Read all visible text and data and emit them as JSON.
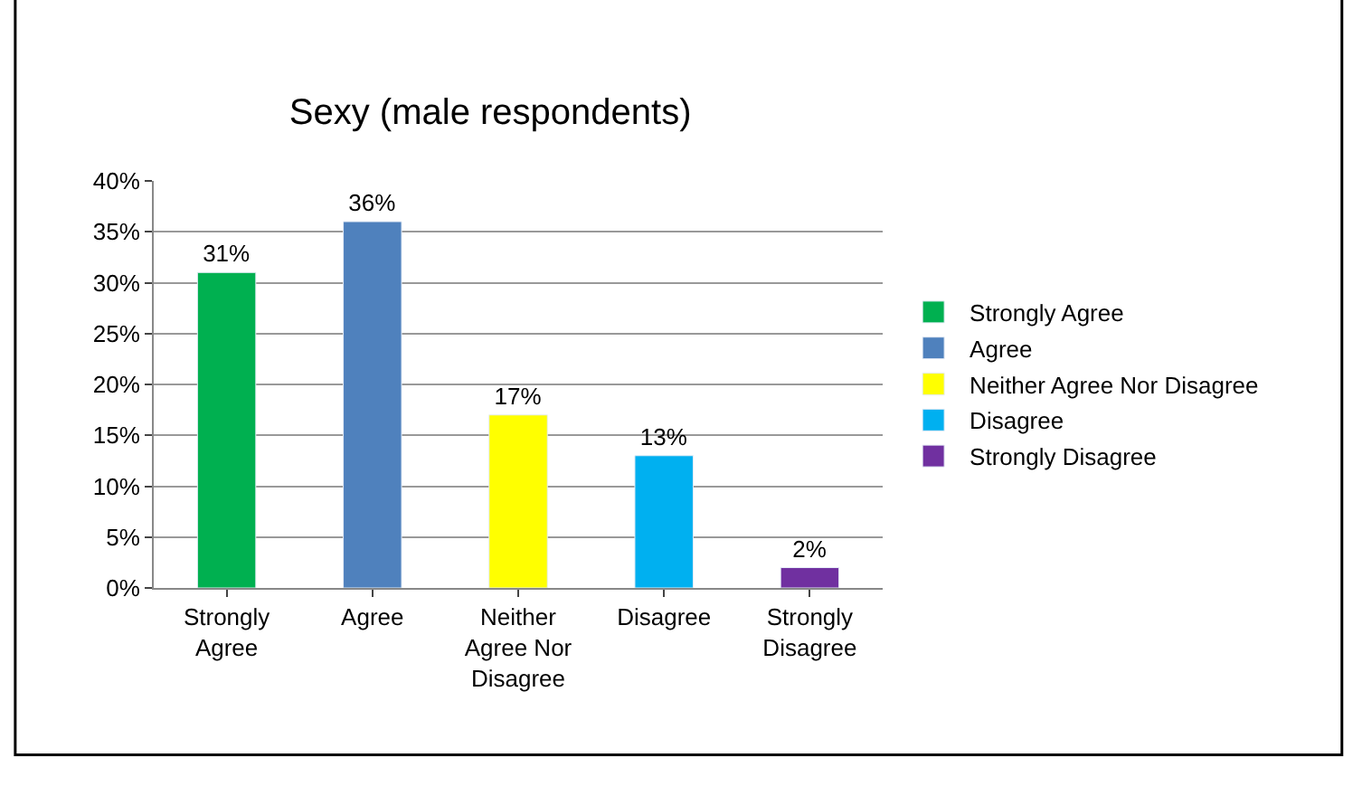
{
  "chart_data": {
    "type": "bar",
    "title": "Sexy (male respondents)",
    "categories": [
      "Strongly Agree",
      "Agree",
      "Neither Agree Nor Disagree",
      "Disagree",
      "Strongly Disagree"
    ],
    "series": [
      {
        "name": "Strongly Agree",
        "color": "#00b050",
        "values": [
          31,
          null,
          null,
          null,
          null
        ],
        "value_labels": [
          "31%",
          null,
          null,
          null,
          null
        ]
      },
      {
        "name": "Agree",
        "color": "#4f81bd",
        "values": [
          null,
          36,
          null,
          null,
          null
        ],
        "value_labels": [
          null,
          "36%",
          null,
          null,
          null
        ]
      },
      {
        "name": "Neither Agree Nor Disagree",
        "color": "#ffff00",
        "values": [
          null,
          null,
          17,
          null,
          null
        ],
        "value_labels": [
          null,
          null,
          "17%",
          null,
          null
        ]
      },
      {
        "name": "Disagree",
        "color": "#00b0f0",
        "values": [
          null,
          null,
          null,
          13,
          null
        ],
        "value_labels": [
          null,
          null,
          null,
          "13%",
          null
        ]
      },
      {
        "name": "Strongly Disagree",
        "color": "#7030a0",
        "values": [
          null,
          null,
          null,
          null,
          2
        ],
        "value_labels": [
          null,
          null,
          null,
          null,
          "2%"
        ]
      }
    ],
    "ylim": [
      0,
      40
    ],
    "yticks": [
      {
        "value": 0,
        "label": "0%"
      },
      {
        "value": 5,
        "label": "5%"
      },
      {
        "value": 10,
        "label": "10%"
      },
      {
        "value": 15,
        "label": "15%"
      },
      {
        "value": 20,
        "label": "20%"
      },
      {
        "value": 25,
        "label": "25%"
      },
      {
        "value": 30,
        "label": "30%"
      },
      {
        "value": 35,
        "label": "35%"
      },
      {
        "value": 40,
        "label": "40%"
      }
    ],
    "grid": "y",
    "legend": "right"
  }
}
